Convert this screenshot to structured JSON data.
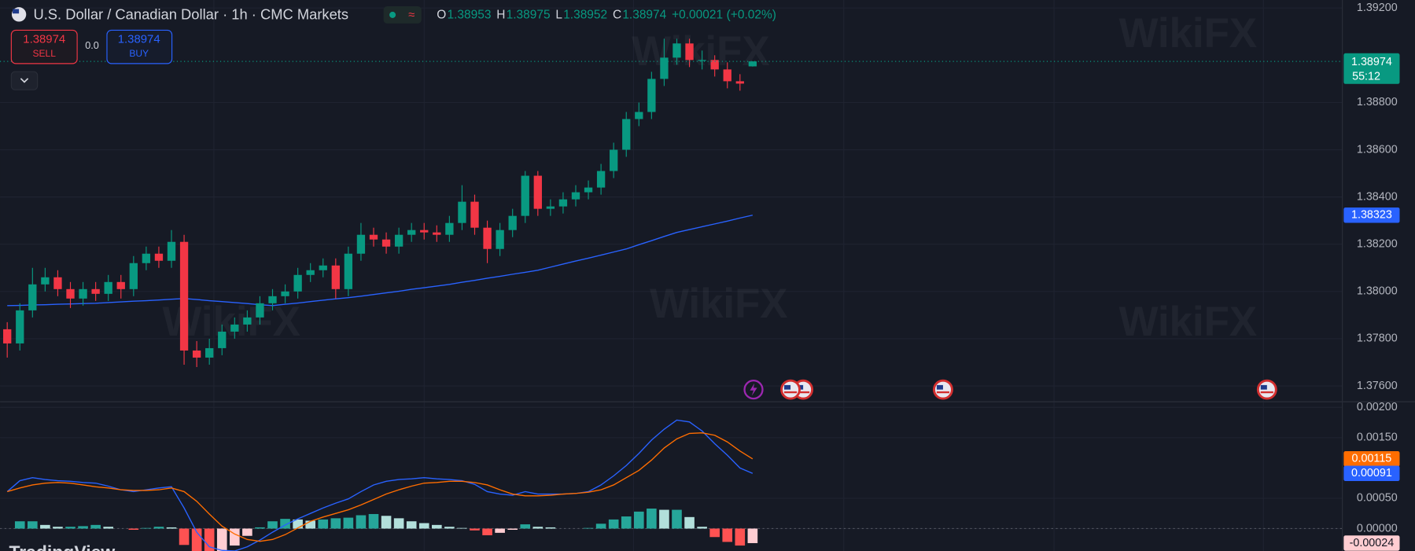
{
  "header": {
    "title": "U.S. Dollar / Canadian Dollar · 1h · CMC Markets",
    "ohlc": [
      {
        "key": "O",
        "value": 1.38953
      },
      {
        "key": "H",
        "value": 1.38975
      },
      {
        "key": "L",
        "value": 1.38952
      },
      {
        "key": "C",
        "value": 1.38974
      }
    ],
    "change": "+0.00021",
    "change_pct": "(+0.02%)",
    "trade": {
      "sell_price": 1.38974,
      "sell": "SELL",
      "spread": "0.0",
      "buy_price": 1.38974,
      "buy": "BUY"
    },
    "logo": "TradingView",
    "watermark": "WikiFX"
  },
  "chart_data": [
    {
      "type": "candlestick",
      "up_color": "#089981",
      "down_color": "#f23645",
      "countdown": "55:12",
      "grid": true,
      "open": [
        1.3784,
        1.3778,
        1.3792,
        1.3803,
        1.3806,
        1.3801,
        1.3797,
        1.3801,
        1.3799,
        1.3804,
        1.3801,
        1.3812,
        1.3816,
        1.3813,
        1.3821,
        1.3775,
        1.3772,
        1.3776,
        1.3783,
        1.3786,
        1.3789,
        1.3795,
        1.3798,
        1.38,
        1.3807,
        1.3809,
        1.3811,
        1.3801,
        1.3816,
        1.3824,
        1.3822,
        1.3819,
        1.3824,
        1.3826,
        1.3825,
        1.3824,
        1.3829,
        1.3838,
        1.3827,
        1.3818,
        1.3826,
        1.3832,
        1.3849,
        1.3835,
        1.3836,
        1.3839,
        1.3842,
        1.3844,
        1.3851,
        1.386,
        1.3873,
        1.3876,
        1.389,
        1.3899,
        1.3905,
        1.3898,
        1.3898,
        1.3894,
        1.3889,
        1.38953
      ],
      "high": [
        1.3787,
        1.3795,
        1.381,
        1.381,
        1.3809,
        1.3804,
        1.3804,
        1.3804,
        1.3807,
        1.3807,
        1.3815,
        1.3819,
        1.3819,
        1.3826,
        1.3824,
        1.3779,
        1.378,
        1.3786,
        1.3789,
        1.3792,
        1.3798,
        1.3801,
        1.3803,
        1.381,
        1.3812,
        1.3814,
        1.3814,
        1.3819,
        1.3829,
        1.3827,
        1.3825,
        1.3827,
        1.3829,
        1.3829,
        1.3828,
        1.3832,
        1.3845,
        1.3841,
        1.383,
        1.3829,
        1.3835,
        1.3851,
        1.3851,
        1.3839,
        1.3842,
        1.3845,
        1.3847,
        1.3854,
        1.3863,
        1.3876,
        1.388,
        1.3893,
        1.3907,
        1.3907,
        1.3907,
        1.3902,
        1.39,
        1.3897,
        1.3892,
        1.38975
      ],
      "low": [
        1.3772,
        1.3775,
        1.3789,
        1.38,
        1.3798,
        1.3793,
        1.3794,
        1.3796,
        1.3796,
        1.3797,
        1.3798,
        1.3809,
        1.381,
        1.381,
        1.3769,
        1.3768,
        1.3769,
        1.3773,
        1.378,
        1.3783,
        1.3786,
        1.3792,
        1.3795,
        1.3797,
        1.3804,
        1.3806,
        1.3797,
        1.3798,
        1.3813,
        1.3819,
        1.3816,
        1.3816,
        1.3821,
        1.3822,
        1.3821,
        1.3821,
        1.3826,
        1.3824,
        1.3812,
        1.3815,
        1.3823,
        1.3829,
        1.3832,
        1.3832,
        1.3833,
        1.3836,
        1.3839,
        1.3841,
        1.3848,
        1.3857,
        1.387,
        1.3873,
        1.3887,
        1.3896,
        1.3895,
        1.3894,
        1.3891,
        1.3886,
        1.3885,
        1.38952
      ],
      "close": [
        1.3778,
        1.3792,
        1.3803,
        1.3806,
        1.3801,
        1.3797,
        1.3801,
        1.3799,
        1.3804,
        1.3801,
        1.3812,
        1.3816,
        1.3813,
        1.3821,
        1.3775,
        1.3772,
        1.3776,
        1.3783,
        1.3786,
        1.3789,
        1.3795,
        1.3798,
        1.38,
        1.3807,
        1.3809,
        1.3811,
        1.3801,
        1.3816,
        1.3824,
        1.3822,
        1.3819,
        1.3824,
        1.3826,
        1.3825,
        1.3824,
        1.3829,
        1.3838,
        1.3827,
        1.3818,
        1.3826,
        1.3832,
        1.3849,
        1.3835,
        1.3836,
        1.3839,
        1.3842,
        1.3844,
        1.3851,
        1.386,
        1.3873,
        1.3876,
        1.389,
        1.3899,
        1.3905,
        1.3898,
        1.3898,
        1.3894,
        1.3889,
        1.3888,
        1.38974
      ],
      "overlays": [
        {
          "color": "#2962ff",
          "values": [
            1.3794,
            1.37941,
            1.37943,
            1.37944,
            1.37946,
            1.37947,
            1.37949,
            1.3795,
            1.37953,
            1.37956,
            1.37959,
            1.37961,
            1.37964,
            1.37967,
            1.3797,
            1.37966,
            1.37961,
            1.37957,
            1.37953,
            1.37949,
            1.37944,
            1.3794,
            1.37946,
            1.37951,
            1.37957,
            1.37963,
            1.37969,
            1.37974,
            1.3798,
            1.37987,
            1.37994,
            1.38001,
            1.38009,
            1.38016,
            1.38023,
            1.3803,
            1.38039,
            1.38047,
            1.38056,
            1.38064,
            1.38073,
            1.38081,
            1.3809,
            1.38103,
            1.38116,
            1.38129,
            1.38141,
            1.38154,
            1.38167,
            1.3818,
            1.38198,
            1.38215,
            1.38233,
            1.3825,
            1.38262,
            1.38274,
            1.38286,
            1.38298,
            1.38311,
            1.38323
          ]
        }
      ],
      "ylim": [
        1.37535,
        1.39234
      ],
      "yticks": [
        {
          "value": 1.376,
          "label": "1.37600"
        },
        {
          "value": 1.378,
          "label": "1.37800"
        },
        {
          "value": 1.38,
          "label": "1.38000"
        },
        {
          "value": 1.382,
          "label": "1.38200"
        },
        {
          "value": 1.384,
          "label": "1.38400"
        },
        {
          "value": 1.386,
          "label": "1.38600"
        },
        {
          "value": 1.388,
          "label": "1.38800"
        },
        {
          "value": 1.392,
          "label": "1.39200"
        }
      ]
    },
    {
      "type": "macd",
      "grid": true,
      "series": [
        {
          "color": "#2962ff",
          "values": [
            0.00061,
            0.00079,
            0.00084,
            0.00081,
            0.00079,
            0.00078,
            0.00076,
            0.00075,
            0.0007,
            0.00064,
            0.00061,
            0.00064,
            0.00067,
            0.00069,
            0.00034,
            -6e-05,
            -0.0003,
            -0.00036,
            -0.00037,
            -0.0003,
            -0.00019,
            -6e-05,
            6e-05,
            0.00016,
            0.00025,
            0.00034,
            0.00042,
            0.00049,
            0.00061,
            0.00072,
            0.00078,
            0.00081,
            0.00082,
            0.00084,
            0.00082,
            0.00081,
            0.00079,
            0.00073,
            0.00061,
            0.00057,
            0.00055,
            0.00061,
            0.00057,
            0.00057,
            0.00057,
            0.00058,
            0.00061,
            0.00072,
            0.00087,
            0.00104,
            0.00124,
            0.00146,
            0.00164,
            0.00179,
            0.00176,
            0.00161,
            0.0014,
            0.00121,
            0.001,
            0.00091
          ]
        },
        {
          "color": "#ff6d00",
          "values": [
            0.00061,
            0.00067,
            0.00072,
            0.00075,
            0.00076,
            0.00075,
            0.00072,
            0.00069,
            0.00067,
            0.00064,
            0.00063,
            0.00063,
            0.00064,
            0.00067,
            0.00061,
            0.00045,
            0.00024,
            4e-05,
            -9e-05,
            -0.00018,
            -0.00021,
            -0.00018,
            -0.0001,
            1e-05,
            0.00012,
            0.00019,
            0.00025,
            0.00031,
            0.00039,
            0.00048,
            0.00057,
            0.00064,
            0.0007,
            0.00075,
            0.00076,
            0.00078,
            0.00078,
            0.00076,
            0.00072,
            0.00064,
            0.00057,
            0.00054,
            0.00054,
            0.00055,
            0.00057,
            0.00058,
            0.0006,
            0.00064,
            0.00072,
            0.00084,
            0.00096,
            0.00113,
            0.00133,
            0.00148,
            0.00157,
            0.00158,
            0.00154,
            0.00143,
            0.00128,
            0.00115
          ]
        }
      ],
      "histogram": {
        "colors": [
          "#26a69a",
          "#b2dfdb",
          "#ff5252",
          "#ffcdd2"
        ],
        "values": [
          0,
          0.00012,
          0.00012,
          6e-05,
          3e-05,
          3e-05,
          4e-05,
          6e-05,
          3e-05,
          0,
          -2e-05,
          1e-05,
          3e-05,
          2e-05,
          -0.00027,
          -0.00051,
          -0.00054,
          -0.0004,
          -0.00028,
          -0.00012,
          2e-05,
          0.00012,
          0.00016,
          0.00015,
          0.00013,
          0.00015,
          0.00017,
          0.00018,
          0.00022,
          0.00024,
          0.00021,
          0.00017,
          0.00012,
          9e-05,
          6e-05,
          3e-05,
          1e-05,
          -3e-05,
          -0.00011,
          -7e-05,
          -2e-05,
          7e-05,
          3e-05,
          2e-05,
          0,
          0,
          1e-05,
          8e-05,
          0.00015,
          0.0002,
          0.00028,
          0.00033,
          0.00031,
          0.00031,
          0.00019,
          3e-05,
          -0.00014,
          -0.00022,
          -0.00028,
          -0.00024
        ]
      },
      "ylim": [
        -0.00037,
        0.0021
      ],
      "yticks": [
        {
          "value": 0,
          "label": "0.00000"
        },
        {
          "value": 0.0005,
          "label": "0.00050"
        },
        {
          "value": 0.0015,
          "label": "0.00150"
        },
        {
          "value": 0.002,
          "label": "0.00200"
        }
      ]
    }
  ]
}
